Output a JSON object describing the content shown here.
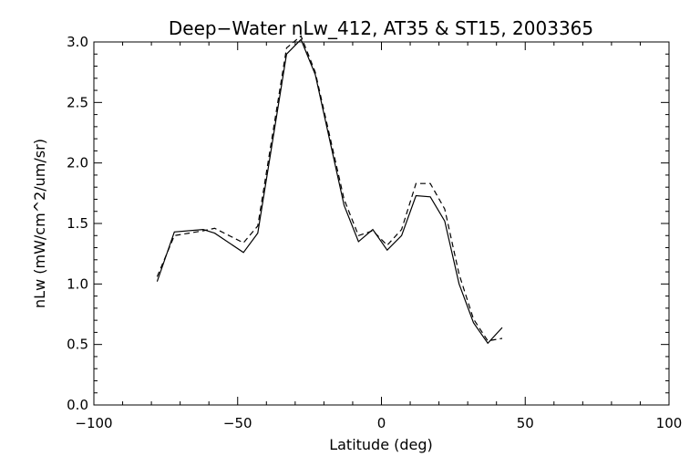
{
  "chart_data": {
    "type": "line",
    "title": "Deep−Water nLw_412, AT35 & ST15, 2003365",
    "xlabel": "Latitude (deg)",
    "ylabel": "nLw (mW/cm^2/um/sr)",
    "xlim": [
      -100,
      100
    ],
    "ylim": [
      0,
      3
    ],
    "x_ticks": [
      "−100",
      "−50",
      "0",
      "50",
      "100"
    ],
    "y_ticks": [
      "0.0",
      "0.5",
      "1.0",
      "1.5",
      "2.0",
      "2.5",
      "3.0"
    ],
    "grid": false,
    "series": [
      {
        "style": "solid",
        "color": "#000000",
        "x": [
          -78,
          -72,
          -62,
          -58,
          -48,
          -43,
          -33,
          -28,
          -23,
          -13,
          -8,
          -3,
          2,
          7,
          12,
          17,
          22,
          27,
          32,
          37,
          42
        ],
        "y": [
          1.02,
          1.43,
          1.45,
          1.42,
          1.26,
          1.42,
          2.9,
          3.02,
          2.73,
          1.65,
          1.35,
          1.45,
          1.28,
          1.4,
          1.73,
          1.72,
          1.52,
          1.0,
          0.68,
          0.51,
          0.64
        ]
      },
      {
        "style": "dashed",
        "color": "#000000",
        "x": [
          -78,
          -72,
          -62,
          -58,
          -48,
          -43,
          -33,
          -28,
          -23,
          -13,
          -8,
          -3,
          2,
          7,
          12,
          17,
          22,
          27,
          32,
          37,
          42
        ],
        "y": [
          1.06,
          1.4,
          1.44,
          1.46,
          1.34,
          1.48,
          2.95,
          3.05,
          2.75,
          1.7,
          1.4,
          1.44,
          1.32,
          1.45,
          1.83,
          1.83,
          1.62,
          1.08,
          0.71,
          0.53,
          0.55
        ]
      }
    ]
  }
}
